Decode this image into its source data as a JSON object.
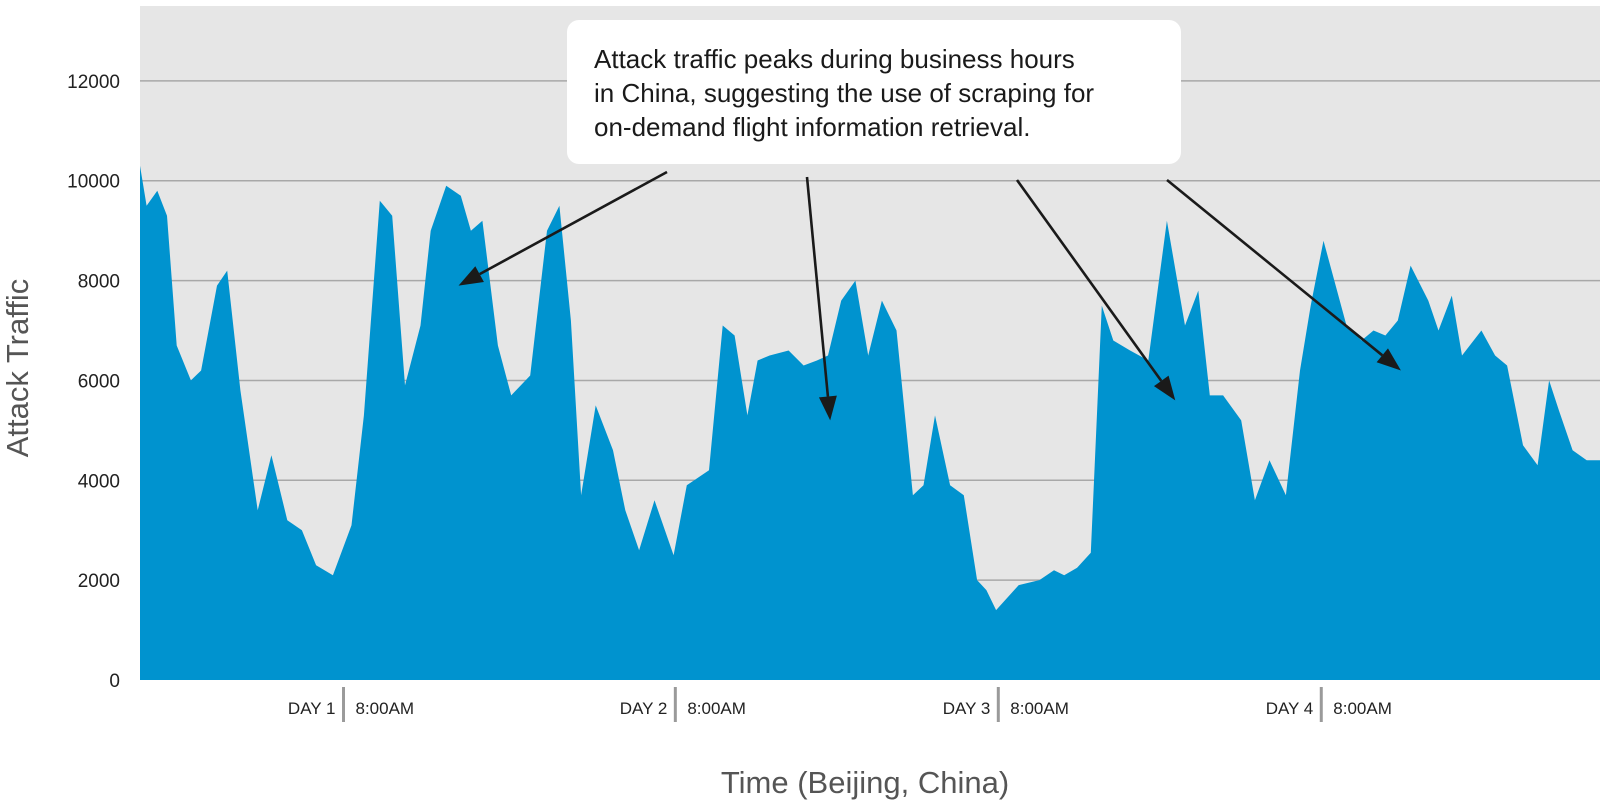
{
  "chart_data": {
    "type": "area",
    "title": "",
    "xlabel": "Time (Beijing, China)",
    "ylabel": "Attack Traffic",
    "ylim": [
      0,
      13500
    ],
    "yticks": [
      0,
      2000,
      4000,
      6000,
      8000,
      10000,
      12000
    ],
    "grid": true,
    "colors": {
      "area": "#0093cf",
      "plot_background": "#e6e6e6",
      "grid": "#a8a8a8",
      "divider": "#9a9a9a",
      "arrow": "#1a1a1a"
    },
    "x_markers": [
      {
        "day": "DAY 1",
        "time": "8:00AM",
        "x": 0.46
      },
      {
        "day": "DAY 2",
        "time": "8:00AM",
        "x": 1.21
      },
      {
        "day": "DAY 3",
        "time": "8:00AM",
        "x": 1.94
      },
      {
        "day": "DAY 4",
        "time": "8:00AM",
        "x": 2.67
      }
    ],
    "series": [
      {
        "x": [
          0,
          0.015,
          0.039,
          0.061,
          0.083,
          0.115,
          0.138,
          0.174,
          0.197,
          0.227,
          0.266,
          0.297,
          0.333,
          0.366,
          0.398,
          0.436,
          0.478,
          0.506,
          0.542,
          0.57,
          0.599,
          0.634,
          0.657,
          0.692,
          0.725,
          0.748,
          0.774,
          0.809,
          0.839,
          0.882,
          0.92,
          0.948,
          0.974,
          0.997,
          1.03,
          1.069,
          1.097,
          1.128,
          1.163,
          1.206,
          1.236,
          1.286,
          1.317,
          1.344,
          1.373,
          1.396,
          1.423,
          1.466,
          1.5,
          1.53,
          1.555,
          1.585,
          1.617,
          1.646,
          1.677,
          1.71,
          1.747,
          1.771,
          1.797,
          1.831,
          1.862,
          1.892,
          1.913,
          1.935,
          1.986,
          2.033,
          2.066,
          2.089,
          2.118,
          2.149,
          2.174,
          2.2,
          2.238,
          2.279,
          2.321,
          2.362,
          2.392,
          2.418,
          2.448,
          2.489,
          2.52,
          2.553,
          2.59,
          2.622,
          2.646,
          2.675,
          2.727,
          2.761,
          2.788,
          2.815,
          2.843,
          2.872,
          2.912,
          2.935,
          2.965,
          2.988,
          3.032,
          3.063,
          3.09,
          3.126,
          3.159,
          3.185,
          3.207,
          3.238,
          3.27,
          3.3
        ],
        "values": [
          10300,
          9500,
          9800,
          9300,
          6700,
          6000,
          6200,
          7900,
          8200,
          5800,
          3400,
          4500,
          3200,
          3000,
          2300,
          2100,
          3100,
          5300,
          9600,
          9300,
          5900,
          7100,
          9000,
          9900,
          9700,
          9000,
          9200,
          6700,
          5700,
          6100,
          9000,
          9500,
          7200,
          3700,
          5500,
          4600,
          3400,
          2600,
          3600,
          2500,
          3900,
          4200,
          7100,
          6900,
          5300,
          6400,
          6500,
          6600,
          6300,
          6400,
          6500,
          7600,
          8000,
          6500,
          7600,
          7000,
          3700,
          3900,
          5300,
          3900,
          3700,
          2000,
          1800,
          1400,
          1900,
          2000,
          2200,
          2100,
          2250,
          2550,
          7500,
          6800,
          6600,
          6400,
          9200,
          7100,
          7800,
          5700,
          5700,
          5200,
          3600,
          4400,
          3700,
          6200,
          7500,
          8800,
          7100,
          6800,
          7000,
          6900,
          7200,
          8300,
          7600,
          7000,
          7700,
          6500,
          7000,
          6500,
          6300,
          4700,
          4300,
          6000,
          5400,
          4600,
          4400,
          4400
        ]
      }
    ],
    "annotation": {
      "lines": [
        "Attack traffic peaks during business hours",
        "in China, suggesting the use of scraping for",
        "on-demand flight information retrieval."
      ],
      "arrow_targets": [
        {
          "x": 0.72,
          "y": 7900
        },
        {
          "x": 1.56,
          "y": 5200
        },
        {
          "x": 2.34,
          "y": 5600
        },
        {
          "x": 2.85,
          "y": 6200
        }
      ]
    }
  }
}
